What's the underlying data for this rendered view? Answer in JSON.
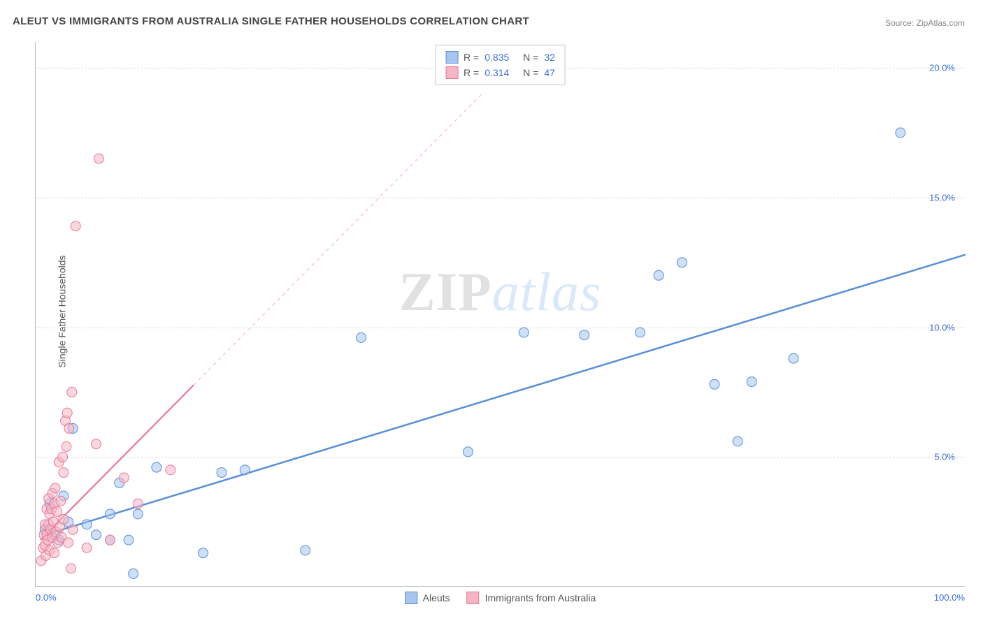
{
  "title": "ALEUT VS IMMIGRANTS FROM AUSTRALIA SINGLE FATHER HOUSEHOLDS CORRELATION CHART",
  "source": "Source: ZipAtlas.com",
  "chart": {
    "type": "scatter",
    "ylabel": "Single Father Households",
    "xlim": [
      0,
      100
    ],
    "ylim": [
      0,
      21
    ],
    "yticks": [
      5,
      10,
      15,
      20
    ],
    "ytick_labels": [
      "5.0%",
      "10.0%",
      "15.0%",
      "20.0%"
    ],
    "xticks": [
      0,
      100
    ],
    "xtick_labels": [
      "0.0%",
      "100.0%"
    ],
    "grid_color": "#dadada",
    "background_color": "#ffffff",
    "label_fontsize": 14,
    "tick_fontsize": 13,
    "tick_color": "#3a6fd8",
    "axis_color": "#bbbbbb",
    "marker_radius": 7,
    "marker_opacity": 0.55,
    "series": [
      {
        "name": "Aleuts",
        "fill_color": "#a7c5ee",
        "stroke_color": "#5a8fd6",
        "R": "0.835",
        "N": "32",
        "trend": {
          "x1": 1,
          "y1": 2.0,
          "x2": 100,
          "y2": 12.8,
          "dash_after_x": null
        },
        "points": [
          {
            "x": 1.0,
            "y": 2.2
          },
          {
            "x": 1.5,
            "y": 3.2
          },
          {
            "x": 2.0,
            "y": 2.0
          },
          {
            "x": 2.5,
            "y": 1.8
          },
          {
            "x": 3.0,
            "y": 3.5
          },
          {
            "x": 3.5,
            "y": 2.5
          },
          {
            "x": 4.0,
            "y": 6.1
          },
          {
            "x": 5.5,
            "y": 2.4
          },
          {
            "x": 6.5,
            "y": 2.0
          },
          {
            "x": 8.0,
            "y": 1.8
          },
          {
            "x": 8.0,
            "y": 2.8
          },
          {
            "x": 9.0,
            "y": 4.0
          },
          {
            "x": 10.0,
            "y": 1.8
          },
          {
            "x": 10.5,
            "y": 0.5
          },
          {
            "x": 11.0,
            "y": 2.8
          },
          {
            "x": 13.0,
            "y": 4.6
          },
          {
            "x": 18.0,
            "y": 1.3
          },
          {
            "x": 20.0,
            "y": 4.4
          },
          {
            "x": 22.5,
            "y": 4.5
          },
          {
            "x": 29.0,
            "y": 1.4
          },
          {
            "x": 35.0,
            "y": 9.6
          },
          {
            "x": 46.5,
            "y": 5.2
          },
          {
            "x": 52.5,
            "y": 9.8
          },
          {
            "x": 59.0,
            "y": 9.7
          },
          {
            "x": 65.0,
            "y": 9.8
          },
          {
            "x": 67.0,
            "y": 12.0
          },
          {
            "x": 69.5,
            "y": 12.5
          },
          {
            "x": 73.0,
            "y": 7.8
          },
          {
            "x": 75.5,
            "y": 5.6
          },
          {
            "x": 77.0,
            "y": 7.9
          },
          {
            "x": 81.5,
            "y": 8.8
          },
          {
            "x": 93.0,
            "y": 17.5
          }
        ]
      },
      {
        "name": "Immigrants from Australia",
        "fill_color": "#f4b6c5",
        "stroke_color": "#e77a98",
        "R": "0.314",
        "N": "47",
        "trend": {
          "x1": 0.5,
          "y1": 1.8,
          "x2": 48,
          "y2": 19.0,
          "dash_after_x": 17
        },
        "points": [
          {
            "x": 0.6,
            "y": 1.0
          },
          {
            "x": 0.8,
            "y": 1.5
          },
          {
            "x": 0.9,
            "y": 2.0
          },
          {
            "x": 1.0,
            "y": 1.6
          },
          {
            "x": 1.0,
            "y": 2.4
          },
          {
            "x": 1.1,
            "y": 1.2
          },
          {
            "x": 1.2,
            "y": 2.0
          },
          {
            "x": 1.2,
            "y": 3.0
          },
          {
            "x": 1.3,
            "y": 1.8
          },
          {
            "x": 1.4,
            "y": 2.4
          },
          {
            "x": 1.4,
            "y": 3.4
          },
          {
            "x": 1.5,
            "y": 1.4
          },
          {
            "x": 1.5,
            "y": 2.8
          },
          {
            "x": 1.6,
            "y": 2.2
          },
          {
            "x": 1.7,
            "y": 3.0
          },
          {
            "x": 1.8,
            "y": 1.9
          },
          {
            "x": 1.8,
            "y": 3.6
          },
          {
            "x": 1.9,
            "y": 2.5
          },
          {
            "x": 2.0,
            "y": 1.3
          },
          {
            "x": 2.0,
            "y": 3.2
          },
          {
            "x": 2.1,
            "y": 3.8
          },
          {
            "x": 2.2,
            "y": 2.1
          },
          {
            "x": 2.3,
            "y": 2.9
          },
          {
            "x": 2.4,
            "y": 1.7
          },
          {
            "x": 2.5,
            "y": 4.8
          },
          {
            "x": 2.6,
            "y": 2.3
          },
          {
            "x": 2.7,
            "y": 3.3
          },
          {
            "x": 2.8,
            "y": 1.9
          },
          {
            "x": 2.9,
            "y": 5.0
          },
          {
            "x": 3.0,
            "y": 2.6
          },
          {
            "x": 3.0,
            "y": 4.4
          },
          {
            "x": 3.2,
            "y": 6.4
          },
          {
            "x": 3.3,
            "y": 5.4
          },
          {
            "x": 3.4,
            "y": 6.7
          },
          {
            "x": 3.5,
            "y": 1.7
          },
          {
            "x": 3.6,
            "y": 6.1
          },
          {
            "x": 3.8,
            "y": 0.7
          },
          {
            "x": 3.9,
            "y": 7.5
          },
          {
            "x": 4.0,
            "y": 2.2
          },
          {
            "x": 4.3,
            "y": 13.9
          },
          {
            "x": 5.5,
            "y": 1.5
          },
          {
            "x": 6.5,
            "y": 5.5
          },
          {
            "x": 6.8,
            "y": 16.5
          },
          {
            "x": 8.0,
            "y": 1.8
          },
          {
            "x": 9.5,
            "y": 4.2
          },
          {
            "x": 11.0,
            "y": 3.2
          },
          {
            "x": 14.5,
            "y": 4.5
          }
        ]
      }
    ]
  },
  "legend": {
    "stats_label_R": "R =",
    "stats_label_N": "N =",
    "bottom": [
      {
        "label": "Aleuts",
        "fill": "#a7c5ee",
        "stroke": "#5a8fd6"
      },
      {
        "label": "Immigrants from Australia",
        "fill": "#f4b6c5",
        "stroke": "#e77a98"
      }
    ]
  },
  "watermark": {
    "part1": "ZIP",
    "part2": "atlas"
  }
}
